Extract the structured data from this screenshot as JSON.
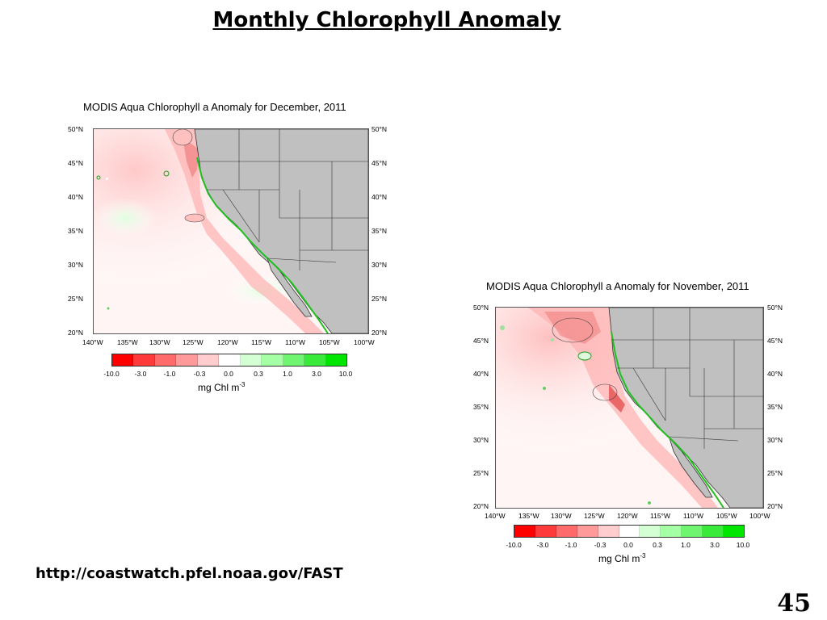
{
  "slide": {
    "title": "Monthly Chlorophyll Anomaly",
    "url": "http://coastwatch.pfel.noaa.gov/FAST",
    "page_number": "45"
  },
  "colors": {
    "negative": "#ff0000",
    "positive": "#00e600",
    "land": "#c0c0c0",
    "ocean": "#ffffff"
  },
  "panels": [
    {
      "title": "MODIS Aqua Chlorophyll a Anomaly for December, 2011",
      "lat_labels": [
        "50°N",
        "45°N",
        "40°N",
        "35°N",
        "30°N",
        "25°N",
        "20°N"
      ],
      "lon_labels": [
        "140°W",
        "135°W",
        "130°W",
        "125°W",
        "120°W",
        "115°W",
        "110°W",
        "105°W",
        "100°W"
      ],
      "colorbar_labels": [
        "-10.0",
        "-3.0",
        "-1.0",
        "-0.3",
        "0.0",
        "0.3",
        "1.0",
        "3.0",
        "10.0"
      ],
      "colorbar_unit": "mg Chl m",
      "colorbar_unit_exp": "-3"
    },
    {
      "title": "MODIS Aqua Chlorophyll a Anomaly for November, 2011",
      "lat_labels": [
        "50°N",
        "45°N",
        "40°N",
        "35°N",
        "30°N",
        "25°N",
        "20°N"
      ],
      "lon_labels": [
        "140°W",
        "135°W",
        "130°W",
        "125°W",
        "120°W",
        "115°W",
        "110°W",
        "105°W",
        "100°W"
      ],
      "colorbar_labels": [
        "-10.0",
        "-3.0",
        "-1.0",
        "-0.3",
        "0.0",
        "0.3",
        "1.0",
        "3.0",
        "10.0"
      ],
      "colorbar_unit": "mg Chl m",
      "colorbar_unit_exp": "-3"
    }
  ]
}
